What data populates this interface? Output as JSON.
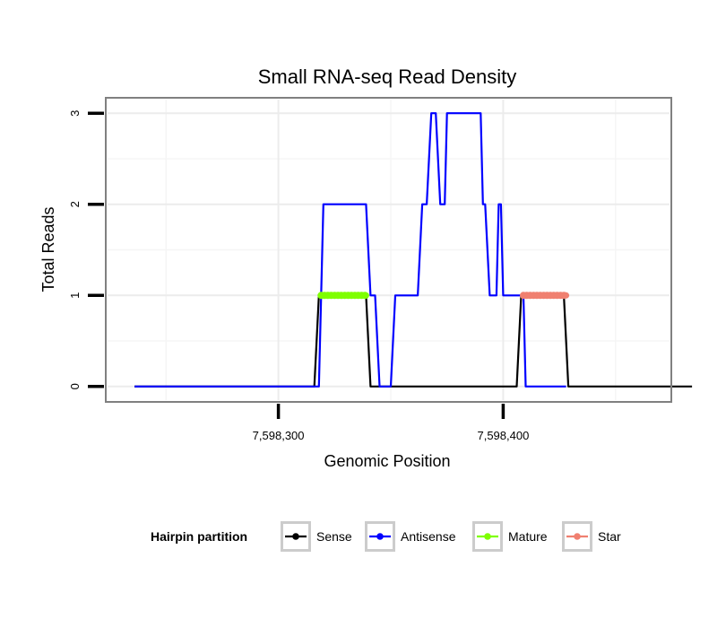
{
  "chart_data": {
    "type": "line",
    "title": "Small RNA-seq Read Density",
    "xlabel": "Genomic Position",
    "ylabel": "Total Reads",
    "xlim": [
      7598224,
      7598474
    ],
    "ylim": [
      -0.15,
      3.15
    ],
    "x_ticks": [
      7598300,
      7598400
    ],
    "x_tick_labels": [
      "7,598,300",
      "7,598,400"
    ],
    "y_ticks": [
      0,
      1,
      2,
      3
    ],
    "y_tick_labels": [
      "0",
      "1",
      "2",
      "3"
    ],
    "grid": true,
    "legend": {
      "title": "Hairpin partition",
      "position": "bottom",
      "entries": [
        "Sense",
        "Antisense",
        "Mature",
        "Star"
      ]
    },
    "series": [
      {
        "name": "Sense",
        "color": "#000000",
        "points": [
          [
            7598236,
            0
          ],
          [
            7598316,
            0
          ],
          [
            7598318,
            1
          ],
          [
            7598339,
            1
          ],
          [
            7598341,
            0
          ],
          [
            7598406,
            0
          ],
          [
            7598408,
            1
          ],
          [
            7598427,
            1
          ],
          [
            7598429,
            0
          ],
          [
            7598484,
            0
          ]
        ]
      },
      {
        "name": "Antisense",
        "color": "#0000FF",
        "points": [
          [
            7598236,
            0
          ],
          [
            7598318,
            0
          ],
          [
            7598320,
            2
          ],
          [
            7598339,
            2
          ],
          [
            7598341,
            1
          ],
          [
            7598343,
            1
          ],
          [
            7598345,
            0
          ],
          [
            7598350,
            0
          ],
          [
            7598352,
            1
          ],
          [
            7598362,
            1
          ],
          [
            7598364,
            2
          ],
          [
            7598366,
            2
          ],
          [
            7598368,
            3
          ],
          [
            7598370,
            3
          ],
          [
            7598372,
            2
          ],
          [
            7598374,
            2
          ],
          [
            7598375,
            3
          ],
          [
            7598390,
            3
          ],
          [
            7598391,
            2
          ],
          [
            7598392,
            2
          ],
          [
            7598394,
            1
          ],
          [
            7598397,
            1
          ],
          [
            7598398,
            2
          ],
          [
            7598399,
            2
          ],
          [
            7598400,
            1
          ],
          [
            7598408,
            1
          ],
          [
            7598409,
            1
          ],
          [
            7598410,
            0
          ],
          [
            7598428,
            0
          ]
        ]
      },
      {
        "name": "Mature",
        "color": "#7FFF00",
        "points": [
          [
            7598319,
            1
          ],
          [
            7598339,
            1
          ]
        ]
      },
      {
        "name": "Star",
        "color": "#F08070",
        "points": [
          [
            7598409,
            1
          ],
          [
            7598428,
            1
          ]
        ]
      }
    ]
  }
}
